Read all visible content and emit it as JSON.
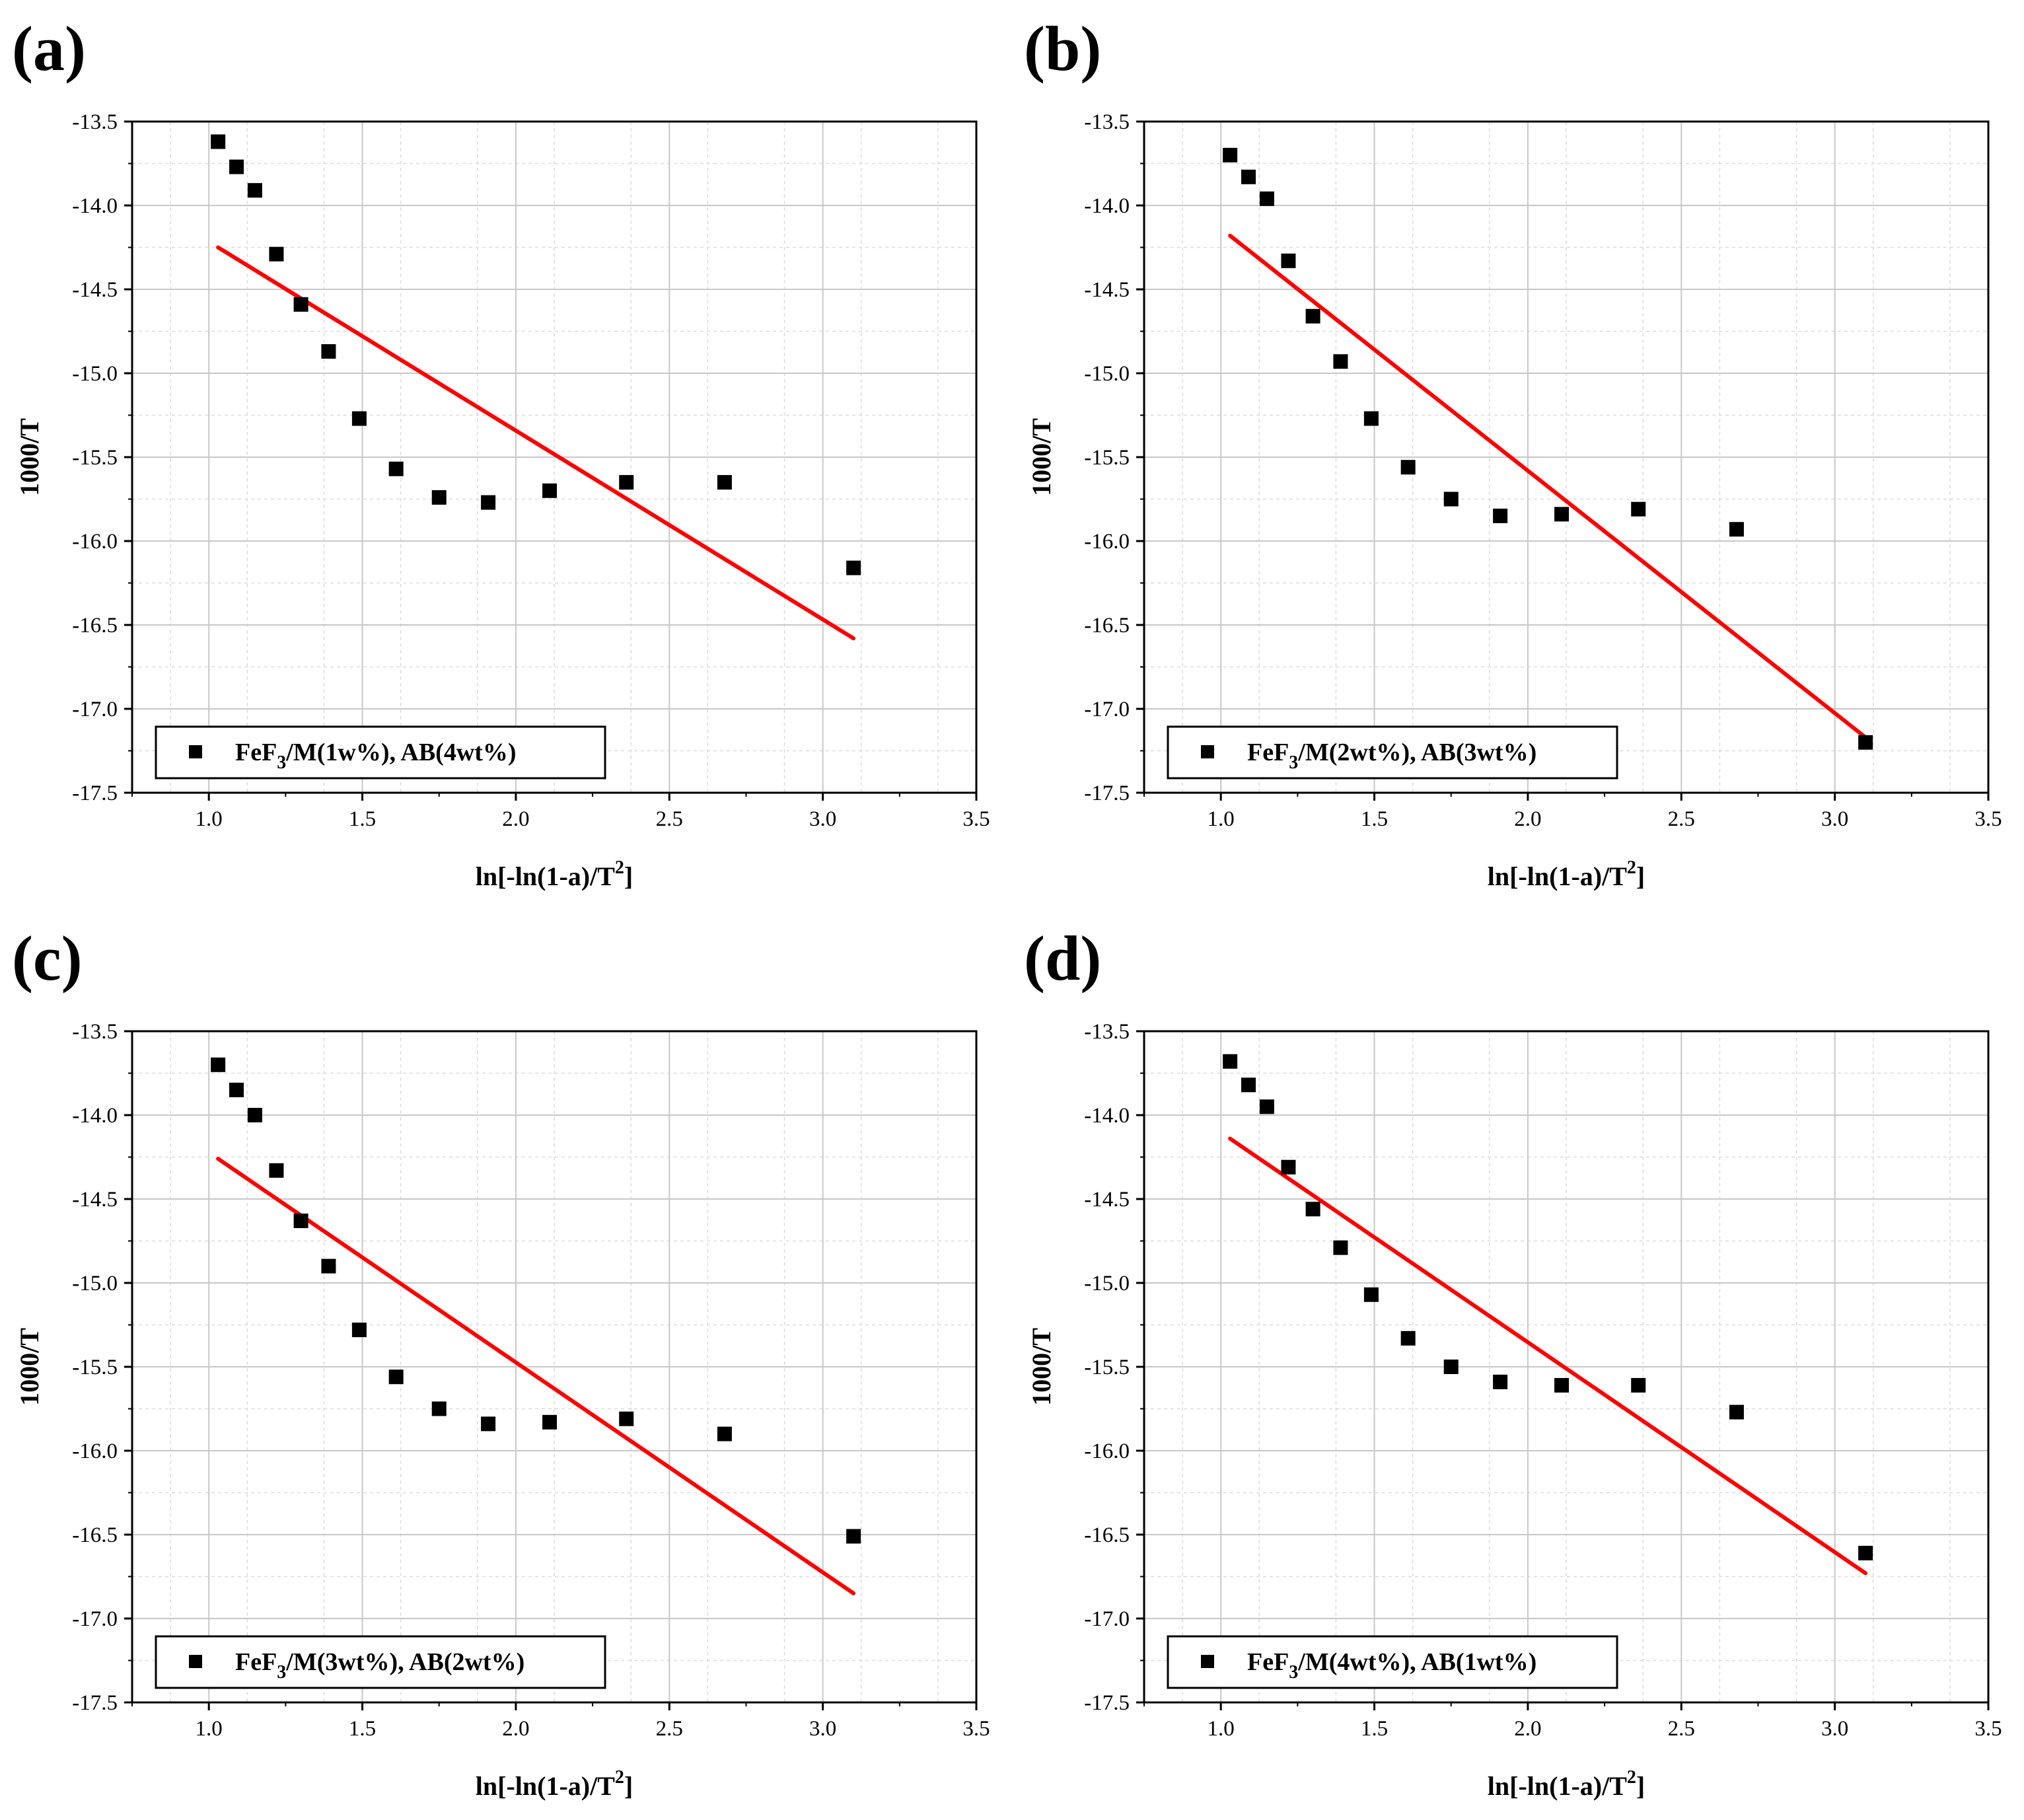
{
  "chart_data": [
    {
      "type": "scatter",
      "panel_label": "(a)",
      "xlabel": "ln[-ln(1-a)/T",
      "xlabel_sup": "2",
      "xlabel_end": "]",
      "ylabel": "1000/T",
      "xlim": [
        0.75,
        3.5
      ],
      "ylim": [
        -17.5,
        -13.5
      ],
      "xticks": [
        "1.0",
        "1.5",
        "2.0",
        "2.5",
        "3.0",
        "3.5"
      ],
      "yticks": [
        "-13.5",
        "-14.0",
        "-14.5",
        "-15.0",
        "-15.5",
        "-16.0",
        "-16.5",
        "-17.0",
        "-17.5"
      ],
      "legend": {
        "pre": "FeF",
        "sub": "3",
        "post": "/M(1w%), AB(4wt%)",
        "position": "bottom-left"
      },
      "x": [
        1.03,
        1.09,
        1.15,
        1.22,
        1.3,
        1.39,
        1.49,
        1.61,
        1.75,
        1.91,
        2.11,
        2.36,
        2.68,
        3.1
      ],
      "y": [
        -13.62,
        -13.77,
        -13.91,
        -14.29,
        -14.59,
        -14.87,
        -15.27,
        -15.57,
        -15.74,
        -15.77,
        -15.7,
        -15.65,
        -15.65,
        -16.16
      ],
      "fit_line": {
        "x": [
          1.03,
          3.1
        ],
        "y": [
          -14.25,
          -16.58
        ]
      },
      "marker_color": "#000000",
      "line_color": "#ff0000"
    },
    {
      "type": "scatter",
      "panel_label": "(b)",
      "xlabel": "ln[-ln(1-a)/T",
      "xlabel_sup": "2",
      "xlabel_end": "]",
      "ylabel": "1000/T",
      "xlim": [
        0.75,
        3.5
      ],
      "ylim": [
        -17.5,
        -13.5
      ],
      "xticks": [
        "1.0",
        "1.5",
        "2.0",
        "2.5",
        "3.0",
        "3.5"
      ],
      "yticks": [
        "-13.5",
        "-14.0",
        "-14.5",
        "-15.0",
        "-15.5",
        "-16.0",
        "-16.5",
        "-17.0",
        "-17.5"
      ],
      "legend": {
        "pre": "FeF",
        "sub": "3",
        "post": "/M(2wt%), AB(3wt%)",
        "position": "bottom-left"
      },
      "x": [
        1.03,
        1.09,
        1.15,
        1.22,
        1.3,
        1.39,
        1.49,
        1.61,
        1.75,
        1.91,
        2.11,
        2.36,
        2.68,
        3.1
      ],
      "y": [
        -13.7,
        -13.83,
        -13.96,
        -14.33,
        -14.66,
        -14.93,
        -15.27,
        -15.56,
        -15.75,
        -15.85,
        -15.84,
        -15.81,
        -15.93,
        -17.2
      ],
      "fit_line": {
        "x": [
          1.03,
          3.1
        ],
        "y": [
          -14.18,
          -17.17
        ]
      },
      "marker_color": "#000000",
      "line_color": "#ff0000"
    },
    {
      "type": "scatter",
      "panel_label": "(c)",
      "xlabel": "ln[-ln(1-a)/T",
      "xlabel_sup": "2",
      "xlabel_end": "]",
      "ylabel": "1000/T",
      "xlim": [
        0.75,
        3.5
      ],
      "ylim": [
        -17.5,
        -13.5
      ],
      "xticks": [
        "1.0",
        "1.5",
        "2.0",
        "2.5",
        "3.0",
        "3.5"
      ],
      "yticks": [
        "-13.5",
        "-14.0",
        "-14.5",
        "-15.0",
        "-15.5",
        "-16.0",
        "-16.5",
        "-17.0",
        "-17.5"
      ],
      "legend": {
        "pre": "FeF",
        "sub": "3",
        "post": "/M(3wt%), AB(2wt%)",
        "position": "bottom-left"
      },
      "x": [
        1.03,
        1.09,
        1.15,
        1.22,
        1.3,
        1.39,
        1.49,
        1.61,
        1.75,
        1.91,
        2.11,
        2.36,
        2.68,
        3.1
      ],
      "y": [
        -13.7,
        -13.85,
        -14.0,
        -14.33,
        -14.63,
        -14.9,
        -15.28,
        -15.56,
        -15.75,
        -15.84,
        -15.83,
        -15.81,
        -15.9,
        -16.51
      ],
      "fit_line": {
        "x": [
          1.03,
          3.1
        ],
        "y": [
          -14.26,
          -16.85
        ]
      },
      "marker_color": "#000000",
      "line_color": "#ff0000"
    },
    {
      "type": "scatter",
      "panel_label": "(d)",
      "xlabel": "ln[-ln(1-a)/T",
      "xlabel_sup": "2",
      "xlabel_end": "]",
      "ylabel": "1000/T",
      "xlim": [
        0.75,
        3.5
      ],
      "ylim": [
        -17.5,
        -13.5
      ],
      "xticks": [
        "1.0",
        "1.5",
        "2.0",
        "2.5",
        "3.0",
        "3.5"
      ],
      "yticks": [
        "-13.5",
        "-14.0",
        "-14.5",
        "-15.0",
        "-15.5",
        "-16.0",
        "-16.5",
        "-17.0",
        "-17.5"
      ],
      "legend": {
        "pre": "FeF",
        "sub": "3",
        "post": "/M(4wt%), AB(1wt%)",
        "position": "bottom-left"
      },
      "x": [
        1.03,
        1.09,
        1.15,
        1.22,
        1.3,
        1.39,
        1.49,
        1.61,
        1.75,
        1.91,
        2.11,
        2.36,
        2.68,
        3.1
      ],
      "y": [
        -13.68,
        -13.82,
        -13.95,
        -14.31,
        -14.56,
        -14.79,
        -15.07,
        -15.33,
        -15.5,
        -15.59,
        -15.61,
        -15.61,
        -15.77,
        -16.61
      ],
      "fit_line": {
        "x": [
          1.03,
          3.1
        ],
        "y": [
          -14.14,
          -16.73
        ]
      },
      "marker_color": "#000000",
      "line_color": "#ff0000"
    }
  ]
}
